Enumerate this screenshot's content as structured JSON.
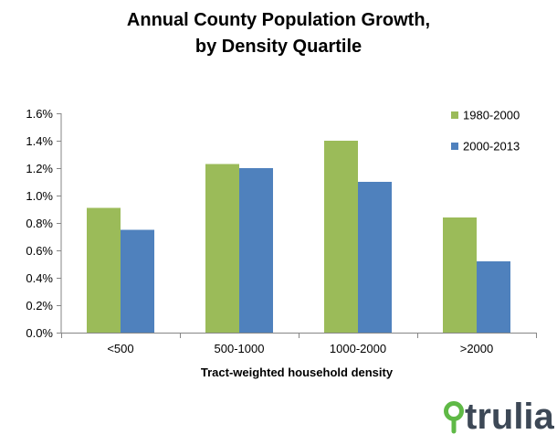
{
  "chart_data": {
    "type": "bar",
    "title_lines": [
      "Annual County Population Growth,",
      "by Density Quartile"
    ],
    "xlabel": "Tract-weighted household density",
    "ylabel": "",
    "categories": [
      "<500",
      "500-1000",
      "1000-2000",
      ">2000"
    ],
    "series": [
      {
        "name": "1980-2000",
        "color": "#9bbb59",
        "values": [
          0.91,
          1.23,
          1.4,
          0.84
        ]
      },
      {
        "name": "2000-2013",
        "color": "#4f81bd",
        "values": [
          0.75,
          1.2,
          1.1,
          0.52
        ]
      }
    ],
    "ylim": [
      0,
      1.6
    ],
    "yticks": [
      0,
      0.2,
      0.4,
      0.6,
      0.8,
      1.0,
      1.2,
      1.4,
      1.6
    ],
    "ytick_labels": [
      "0.0%",
      "0.2%",
      "0.4%",
      "0.6%",
      "0.8%",
      "1.0%",
      "1.2%",
      "1.4%",
      "1.6%"
    ],
    "legend_position": "top-right",
    "grid": false
  },
  "brand": {
    "logo_text": "trulia",
    "pin_color": "#5fb946"
  }
}
